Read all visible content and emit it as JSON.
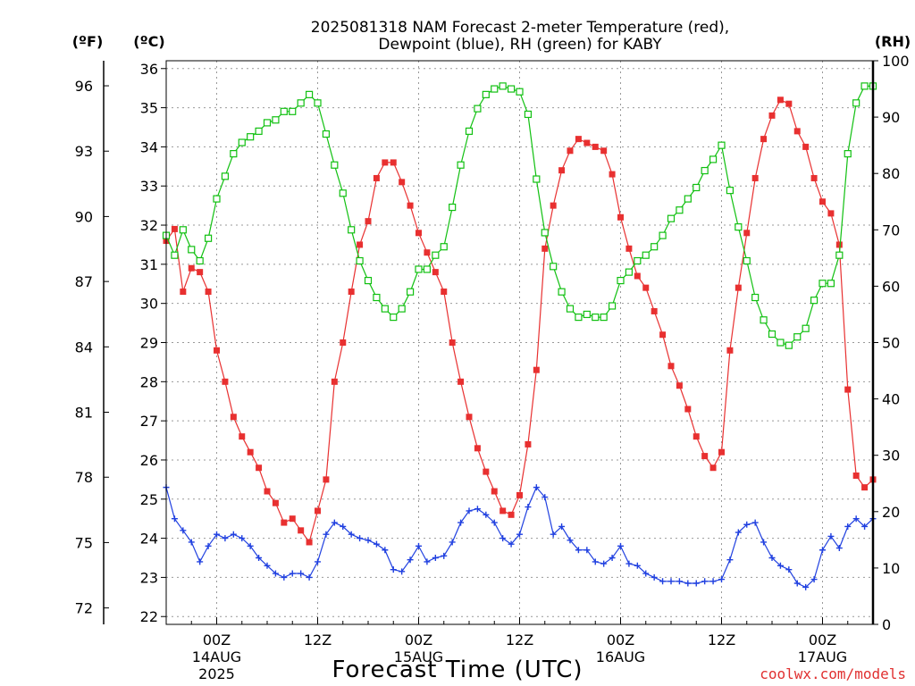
{
  "chart_data": {
    "type": "line",
    "title_line1": "2025081318 NAM Forecast 2-meter Temperature (red),",
    "title_line2": "Dewpoint (blue), RH (green) for KABY",
    "xlabel": "Forecast Time (UTC)",
    "credit": "coolwx.com/models",
    "units": {
      "fahrenheit": "(ºF)",
      "celsius": "(ºC)",
      "rh": "(RH)"
    },
    "x_hours_range": [
      18,
      102
    ],
    "y_celsius_range": [
      21.8,
      36.2
    ],
    "y_rh_range": [
      0,
      100
    ],
    "celsius_ticks": [
      "22",
      "23",
      "24",
      "25",
      "26",
      "27",
      "28",
      "29",
      "30",
      "31",
      "32",
      "33",
      "34",
      "35",
      "36"
    ],
    "fahrenheit_ticks": [
      {
        "label": "72",
        "c": 22.22
      },
      {
        "label": "75",
        "c": 23.89
      },
      {
        "label": "78",
        "c": 25.56
      },
      {
        "label": "81",
        "c": 27.22
      },
      {
        "label": "84",
        "c": 28.89
      },
      {
        "label": "87",
        "c": 30.56
      },
      {
        "label": "90",
        "c": 32.22
      },
      {
        "label": "93",
        "c": 33.89
      },
      {
        "label": "96",
        "c": 35.56
      }
    ],
    "rh_ticks": [
      "0",
      "10",
      "20",
      "30",
      "40",
      "50",
      "60",
      "70",
      "80",
      "90",
      "100"
    ],
    "x_ticks": [
      {
        "hour": 24,
        "time": "00Z",
        "date": "14AUG",
        "year": "2025"
      },
      {
        "hour": 36,
        "time": "12Z",
        "date": "",
        "year": ""
      },
      {
        "hour": 48,
        "time": "00Z",
        "date": "15AUG",
        "year": ""
      },
      {
        "hour": 60,
        "time": "12Z",
        "date": "",
        "year": ""
      },
      {
        "hour": 72,
        "time": "00Z",
        "date": "16AUG",
        "year": ""
      },
      {
        "hour": 84,
        "time": "12Z",
        "date": "",
        "year": ""
      },
      {
        "hour": 96,
        "time": "00Z",
        "date": "17AUG",
        "year": ""
      }
    ],
    "grid": true,
    "colors": {
      "temperature": "#e83030",
      "dewpoint": "#2040e0",
      "rh": "#10c010",
      "grid": "#999999",
      "credit": "#e03030"
    },
    "series": [
      {
        "key": "temperature",
        "axis": "celsius",
        "points": [
          [
            18,
            31.6
          ],
          [
            19,
            31.9
          ],
          [
            20,
            30.3
          ],
          [
            21,
            30.9
          ],
          [
            22,
            30.8
          ],
          [
            23,
            30.3
          ],
          [
            24,
            28.8
          ],
          [
            25,
            28.0
          ],
          [
            26,
            27.1
          ],
          [
            27,
            26.6
          ],
          [
            28,
            26.2
          ],
          [
            29,
            25.8
          ],
          [
            30,
            25.2
          ],
          [
            31,
            24.9
          ],
          [
            32,
            24.4
          ],
          [
            33,
            24.5
          ],
          [
            34,
            24.2
          ],
          [
            35,
            23.9
          ],
          [
            36,
            24.7
          ],
          [
            37,
            25.5
          ],
          [
            38,
            28.0
          ],
          [
            39,
            29.0
          ],
          [
            40,
            30.3
          ],
          [
            41,
            31.5
          ],
          [
            42,
            32.1
          ],
          [
            43,
            33.2
          ],
          [
            44,
            33.6
          ],
          [
            45,
            33.6
          ],
          [
            46,
            33.1
          ],
          [
            47,
            32.5
          ],
          [
            48,
            31.8
          ],
          [
            49,
            31.3
          ],
          [
            50,
            30.8
          ],
          [
            51,
            30.3
          ],
          [
            52,
            29.0
          ],
          [
            53,
            28.0
          ],
          [
            54,
            27.1
          ],
          [
            55,
            26.3
          ],
          [
            56,
            25.7
          ],
          [
            57,
            25.2
          ],
          [
            58,
            24.7
          ],
          [
            59,
            24.6
          ],
          [
            60,
            25.1
          ],
          [
            61,
            26.4
          ],
          [
            62,
            28.3
          ],
          [
            63,
            31.4
          ],
          [
            64,
            32.5
          ],
          [
            65,
            33.4
          ],
          [
            66,
            33.9
          ],
          [
            67,
            34.2
          ],
          [
            68,
            34.1
          ],
          [
            69,
            34.0
          ],
          [
            70,
            33.9
          ],
          [
            71,
            33.3
          ],
          [
            72,
            32.2
          ],
          [
            73,
            31.4
          ],
          [
            74,
            30.7
          ],
          [
            75,
            30.4
          ],
          [
            76,
            29.8
          ],
          [
            77,
            29.2
          ],
          [
            78,
            28.4
          ],
          [
            79,
            27.9
          ],
          [
            80,
            27.3
          ],
          [
            81,
            26.6
          ],
          [
            82,
            26.1
          ],
          [
            83,
            25.8
          ],
          [
            84,
            26.2
          ],
          [
            85,
            28.8
          ],
          [
            86,
            30.4
          ],
          [
            87,
            31.8
          ],
          [
            88,
            33.2
          ],
          [
            89,
            34.2
          ],
          [
            90,
            34.8
          ],
          [
            91,
            35.2
          ],
          [
            92,
            35.1
          ],
          [
            93,
            34.4
          ],
          [
            94,
            34.0
          ],
          [
            95,
            33.2
          ],
          [
            96,
            32.6
          ],
          [
            97,
            32.3
          ],
          [
            98,
            31.5
          ],
          [
            99,
            27.8
          ],
          [
            100,
            25.6
          ],
          [
            101,
            25.3
          ],
          [
            102,
            25.5
          ]
        ]
      },
      {
        "key": "dewpoint",
        "axis": "celsius",
        "points": [
          [
            18,
            25.3
          ],
          [
            19,
            24.5
          ],
          [
            20,
            24.2
          ],
          [
            21,
            23.9
          ],
          [
            22,
            23.4
          ],
          [
            23,
            23.8
          ],
          [
            24,
            24.1
          ],
          [
            25,
            24.0
          ],
          [
            26,
            24.1
          ],
          [
            27,
            24.0
          ],
          [
            28,
            23.8
          ],
          [
            29,
            23.5
          ],
          [
            30,
            23.3
          ],
          [
            31,
            23.1
          ],
          [
            32,
            23.0
          ],
          [
            33,
            23.1
          ],
          [
            34,
            23.1
          ],
          [
            35,
            23.0
          ],
          [
            36,
            23.4
          ],
          [
            37,
            24.1
          ],
          [
            38,
            24.4
          ],
          [
            39,
            24.3
          ],
          [
            40,
            24.1
          ],
          [
            41,
            24.0
          ],
          [
            42,
            23.95
          ],
          [
            43,
            23.85
          ],
          [
            44,
            23.7
          ],
          [
            45,
            23.2
          ],
          [
            46,
            23.15
          ],
          [
            47,
            23.45
          ],
          [
            48,
            23.8
          ],
          [
            49,
            23.4
          ],
          [
            50,
            23.5
          ],
          [
            51,
            23.55
          ],
          [
            52,
            23.9
          ],
          [
            53,
            24.4
          ],
          [
            54,
            24.7
          ],
          [
            55,
            24.75
          ],
          [
            56,
            24.6
          ],
          [
            57,
            24.4
          ],
          [
            58,
            24.0
          ],
          [
            59,
            23.85
          ],
          [
            60,
            24.1
          ],
          [
            61,
            24.8
          ],
          [
            62,
            25.3
          ],
          [
            63,
            25.05
          ],
          [
            64,
            24.1
          ],
          [
            65,
            24.3
          ],
          [
            66,
            23.95
          ],
          [
            67,
            23.7
          ],
          [
            68,
            23.7
          ],
          [
            69,
            23.4
          ],
          [
            70,
            23.35
          ],
          [
            71,
            23.5
          ],
          [
            72,
            23.8
          ],
          [
            73,
            23.35
          ],
          [
            74,
            23.3
          ],
          [
            75,
            23.1
          ],
          [
            76,
            23.0
          ],
          [
            77,
            22.9
          ],
          [
            78,
            22.9
          ],
          [
            79,
            22.9
          ],
          [
            80,
            22.85
          ],
          [
            81,
            22.85
          ],
          [
            82,
            22.9
          ],
          [
            83,
            22.9
          ],
          [
            84,
            22.95
          ],
          [
            85,
            23.45
          ],
          [
            86,
            24.15
          ],
          [
            87,
            24.35
          ],
          [
            88,
            24.4
          ],
          [
            89,
            23.9
          ],
          [
            90,
            23.5
          ],
          [
            91,
            23.3
          ],
          [
            92,
            23.2
          ],
          [
            93,
            22.85
          ],
          [
            94,
            22.75
          ],
          [
            95,
            22.95
          ],
          [
            96,
            23.7
          ],
          [
            97,
            24.05
          ],
          [
            98,
            23.75
          ],
          [
            99,
            24.3
          ],
          [
            100,
            24.5
          ],
          [
            101,
            24.3
          ],
          [
            102,
            24.5
          ]
        ]
      },
      {
        "key": "rh",
        "axis": "rh",
        "points": [
          [
            18,
            69.0
          ],
          [
            19,
            65.5
          ],
          [
            20,
            70.0
          ],
          [
            21,
            66.5
          ],
          [
            22,
            64.5
          ],
          [
            23,
            68.5
          ],
          [
            24,
            75.5
          ],
          [
            25,
            79.5
          ],
          [
            26,
            83.5
          ],
          [
            27,
            85.5
          ],
          [
            28,
            86.5
          ],
          [
            29,
            87.5
          ],
          [
            30,
            89.0
          ],
          [
            31,
            89.5
          ],
          [
            32,
            91.0
          ],
          [
            33,
            91.0
          ],
          [
            34,
            92.5
          ],
          [
            35,
            94.0
          ],
          [
            36,
            92.5
          ],
          [
            37,
            87.0
          ],
          [
            38,
            81.5
          ],
          [
            39,
            76.5
          ],
          [
            40,
            70.0
          ],
          [
            41,
            64.5
          ],
          [
            42,
            61.0
          ],
          [
            43,
            58.0
          ],
          [
            44,
            56.0
          ],
          [
            45,
            54.5
          ],
          [
            46,
            56.0
          ],
          [
            47,
            59.0
          ],
          [
            48,
            63.0
          ],
          [
            49,
            63.0
          ],
          [
            50,
            65.5
          ],
          [
            51,
            67.0
          ],
          [
            52,
            74.0
          ],
          [
            53,
            81.5
          ],
          [
            54,
            87.5
          ],
          [
            55,
            91.5
          ],
          [
            56,
            94.0
          ],
          [
            57,
            95.0
          ],
          [
            58,
            95.5
          ],
          [
            59,
            95.0
          ],
          [
            60,
            94.5
          ],
          [
            61,
            90.5
          ],
          [
            62,
            79.0
          ],
          [
            63,
            69.5
          ],
          [
            64,
            63.5
          ],
          [
            65,
            59.0
          ],
          [
            66,
            56.0
          ],
          [
            67,
            54.5
          ],
          [
            68,
            55.0
          ],
          [
            69,
            54.5
          ],
          [
            70,
            54.5
          ],
          [
            71,
            56.5
          ],
          [
            72,
            61.0
          ],
          [
            73,
            62.5
          ],
          [
            74,
            64.5
          ],
          [
            75,
            65.5
          ],
          [
            76,
            67.0
          ],
          [
            77,
            69.0
          ],
          [
            78,
            72.0
          ],
          [
            79,
            73.5
          ],
          [
            80,
            75.5
          ],
          [
            81,
            77.5
          ],
          [
            82,
            80.5
          ],
          [
            83,
            82.5
          ],
          [
            84,
            85.0
          ],
          [
            85,
            77.0
          ],
          [
            86,
            70.5
          ],
          [
            87,
            64.5
          ],
          [
            88,
            58.0
          ],
          [
            89,
            54.0
          ],
          [
            90,
            51.5
          ],
          [
            91,
            50.0
          ],
          [
            92,
            49.5
          ],
          [
            93,
            51.0
          ],
          [
            94,
            52.5
          ],
          [
            95,
            57.5
          ],
          [
            96,
            60.5
          ],
          [
            97,
            60.5
          ],
          [
            98,
            65.5
          ],
          [
            99,
            83.5
          ],
          [
            100,
            92.5
          ],
          [
            101,
            95.5
          ],
          [
            102,
            95.5
          ]
        ]
      }
    ]
  }
}
